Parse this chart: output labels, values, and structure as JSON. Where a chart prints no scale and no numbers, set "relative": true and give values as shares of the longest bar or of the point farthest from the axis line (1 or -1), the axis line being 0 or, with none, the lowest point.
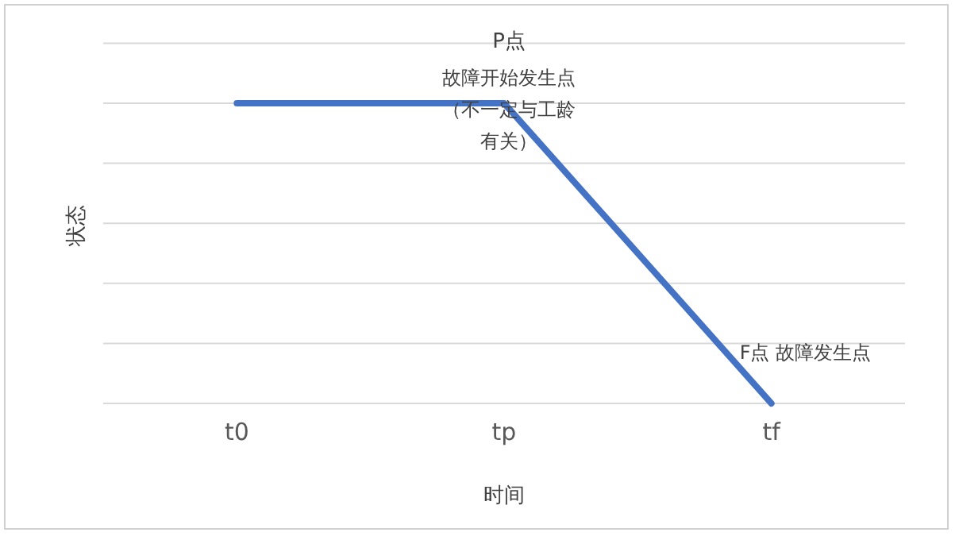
{
  "chart_data": {
    "type": "line",
    "relative": true,
    "categories": [
      "t0",
      "tp",
      "tf"
    ],
    "series": [
      {
        "color": "#4472c4",
        "values": [
          1,
          1,
          0
        ]
      }
    ],
    "xlabel": "时间",
    "ylabel": "状态",
    "grid": "y",
    "marker": "none",
    "line_style": "solid",
    "annotations": [
      {
        "text": "P点",
        "x": "tp",
        "y": 1
      },
      {
        "text": "故障开始发生点（不一定与工龄有关）",
        "x": "tp",
        "y": 1
      },
      {
        "text": "F点 故障发生点",
        "x": "tf",
        "y": 0
      }
    ]
  }
}
